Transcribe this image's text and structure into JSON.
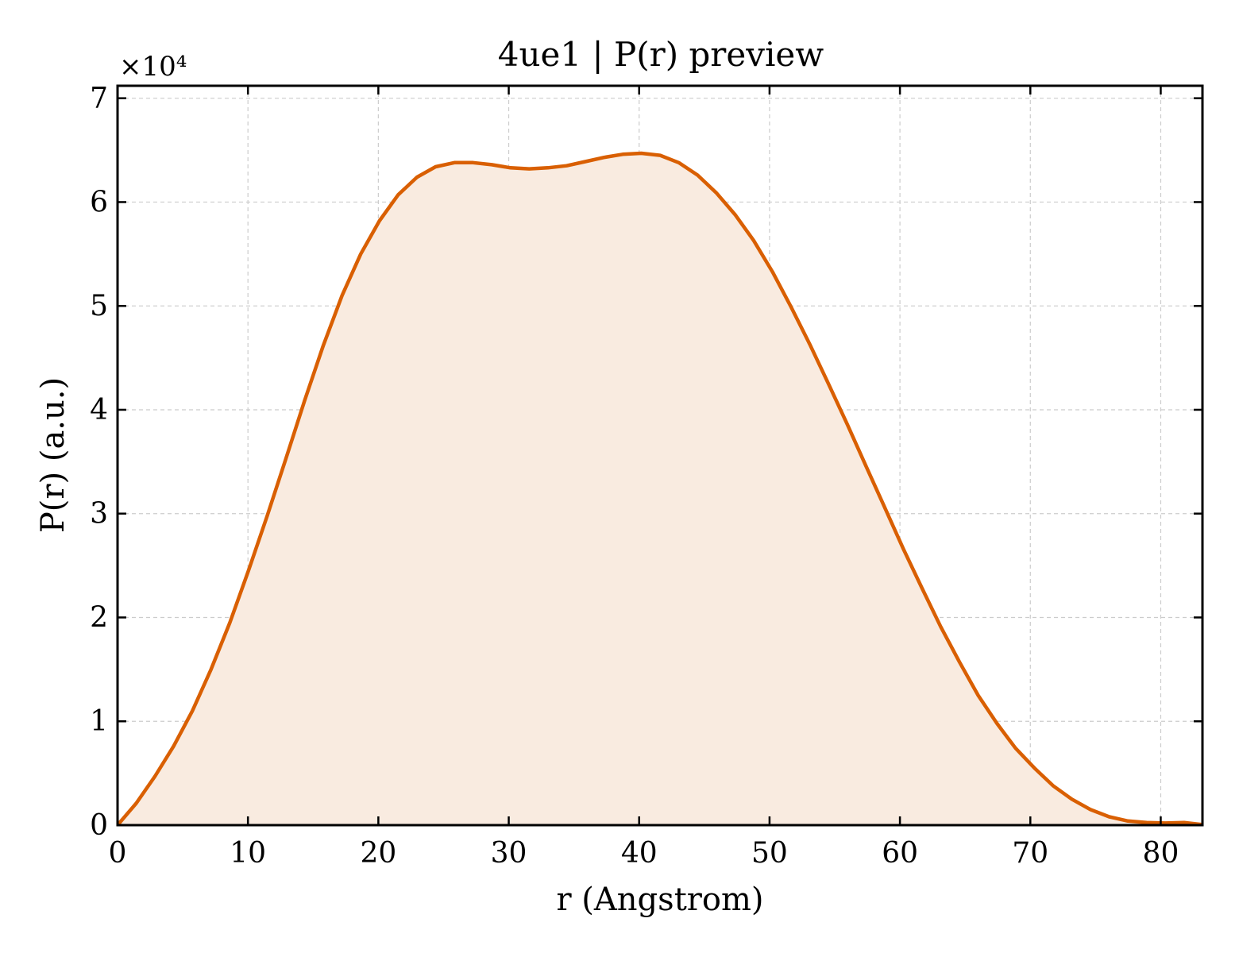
{
  "chart_data": {
    "type": "area",
    "title": "4ue1 | P(r) preview",
    "xlabel": "r (Angstrom)",
    "ylabel": "P(r) (a.u.)",
    "y_scale_label": "×10⁴",
    "y_multiplier": 10000,
    "xlim": [
      0,
      83.2
    ],
    "ylim": [
      0,
      71200
    ],
    "x_ticks": [
      0,
      10,
      20,
      30,
      40,
      50,
      60,
      70,
      80
    ],
    "y_ticks": [
      0,
      10000,
      20000,
      30000,
      40000,
      50000,
      60000,
      70000
    ],
    "x_tick_labels": [
      "0",
      "10",
      "20",
      "30",
      "40",
      "50",
      "60",
      "70",
      "80"
    ],
    "y_tick_labels": [
      "0",
      "1",
      "2",
      "3",
      "4",
      "5",
      "6",
      "7"
    ],
    "grid": true,
    "line_color": "#d95f02",
    "fill_color": "#f9ebe0",
    "series": [
      {
        "x": [
          0,
          1.43,
          2.87,
          4.3,
          5.74,
          7.17,
          8.61,
          10.04,
          11.48,
          12.91,
          14.35,
          15.78,
          17.22,
          18.65,
          20.09,
          21.52,
          22.96,
          24.39,
          25.83,
          27.26,
          28.7,
          30.13,
          31.57,
          33.0,
          34.44,
          35.87,
          37.31,
          38.74,
          40.17,
          41.61,
          43.04,
          44.48,
          45.91,
          47.35,
          48.78,
          50.22,
          51.65,
          53.09,
          54.52,
          55.96,
          57.39,
          58.83,
          60.26,
          61.7,
          63.13,
          64.57,
          66.0,
          67.44,
          68.87,
          70.31,
          71.74,
          73.18,
          74.61,
          76.05,
          77.48,
          78.92,
          80.35,
          81.79,
          83.2
        ],
        "values": [
          0,
          2100,
          4700,
          7600,
          11000,
          15000,
          19500,
          24500,
          29800,
          35300,
          40900,
          46200,
          51000,
          55000,
          58200,
          60700,
          62400,
          63400,
          63800,
          63800,
          63600,
          63300,
          63200,
          63300,
          63500,
          63900,
          64300,
          64600,
          64700,
          64500,
          63800,
          62600,
          60900,
          58800,
          56300,
          53300,
          49900,
          46300,
          42500,
          38600,
          34600,
          30600,
          26600,
          22800,
          19100,
          15700,
          12500,
          9800,
          7400,
          5500,
          3800,
          2500,
          1500,
          800,
          400,
          250,
          200,
          250,
          50
        ]
      }
    ]
  }
}
